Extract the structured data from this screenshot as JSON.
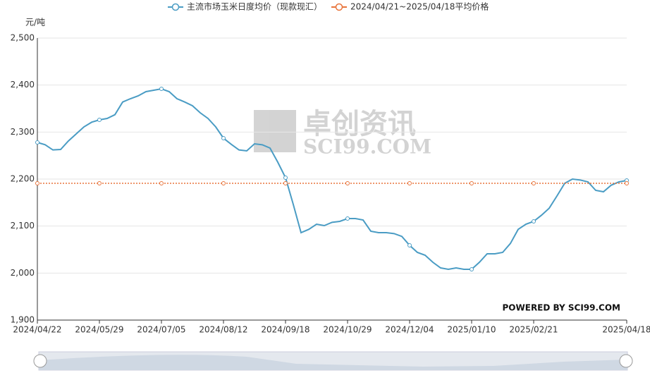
{
  "chart_data": {
    "type": "line",
    "y_unit": "元/吨",
    "watermark": {
      "cn": "卓创资讯",
      "en": "SCI99.COM"
    },
    "credit": "POWERED BY SCI99.COM",
    "categories": [
      "2024/04/22",
      null,
      null,
      null,
      null,
      null,
      null,
      null,
      "2024/05/29",
      null,
      null,
      null,
      null,
      null,
      null,
      null,
      "2024/07/05",
      null,
      null,
      null,
      null,
      null,
      null,
      null,
      "2024/08/12",
      null,
      null,
      null,
      null,
      null,
      null,
      null,
      "2024/09/18",
      null,
      null,
      null,
      null,
      null,
      null,
      null,
      "2024/10/29",
      null,
      null,
      null,
      null,
      null,
      null,
      null,
      "2024/12/04",
      null,
      null,
      null,
      null,
      null,
      null,
      null,
      "2025/01/10",
      null,
      null,
      null,
      null,
      null,
      null,
      null,
      "2025/02/21",
      null,
      null,
      null,
      null,
      null,
      null,
      null,
      null,
      null,
      null,
      null,
      "2025/04/18"
    ],
    "series": [
      {
        "name": "主流市场玉米日度均价（现款现汇）",
        "color": "#4a9cc4",
        "values": [
          2278,
          2273,
          2262,
          2263,
          2281,
          2296,
          2311,
          2321,
          2326,
          2329,
          2337,
          2364,
          2371,
          2377,
          2386,
          2389,
          2392,
          2386,
          2371,
          2364,
          2356,
          2341,
          2329,
          2311,
          2287,
          2274,
          2262,
          2260,
          2275,
          2273,
          2266,
          2236,
          2203,
          2146,
          2086,
          2093,
          2104,
          2101,
          2108,
          2110,
          2116,
          2116,
          2113,
          2089,
          2086,
          2086,
          2084,
          2078,
          2059,
          2044,
          2038,
          2023,
          2011,
          2008,
          2011,
          2008,
          2008,
          2023,
          2041,
          2041,
          2044,
          2063,
          2093,
          2104,
          2110,
          2123,
          2138,
          2164,
          2191,
          2200,
          2198,
          2194,
          2176,
          2173,
          2187,
          2194,
          2197
        ]
      },
      {
        "name": "2024/04/21~2025/04/18平均价格",
        "color": "#e8743b",
        "dashed": true,
        "values": [
          2191,
          2191,
          2191,
          2191,
          2191,
          2191,
          2191,
          2191,
          2191,
          2191,
          2191,
          2191,
          2191,
          2191,
          2191,
          2191,
          2191,
          2191,
          2191,
          2191,
          2191,
          2191,
          2191,
          2191,
          2191,
          2191,
          2191,
          2191,
          2191,
          2191,
          2191,
          2191,
          2191,
          2191,
          2191,
          2191,
          2191,
          2191,
          2191,
          2191,
          2191,
          2191,
          2191,
          2191,
          2191,
          2191,
          2191,
          2191,
          2191,
          2191,
          2191,
          2191,
          2191,
          2191,
          2191,
          2191,
          2191,
          2191,
          2191,
          2191,
          2191,
          2191,
          2191,
          2191,
          2191,
          2191,
          2191,
          2191,
          2191,
          2191,
          2191,
          2191,
          2191,
          2191,
          2191,
          2191,
          2191
        ]
      }
    ],
    "ylim": [
      1900,
      2500
    ],
    "yticks": [
      {
        "value": 1900,
        "label": "1,900"
      },
      {
        "value": 2000,
        "label": "2,000"
      },
      {
        "value": 2100,
        "label": "2,100"
      },
      {
        "value": 2200,
        "label": "2,200"
      },
      {
        "value": 2300,
        "label": "2,300"
      },
      {
        "value": 2400,
        "label": "2,400"
      },
      {
        "value": 2500,
        "label": "2,500"
      }
    ],
    "grid": true
  }
}
